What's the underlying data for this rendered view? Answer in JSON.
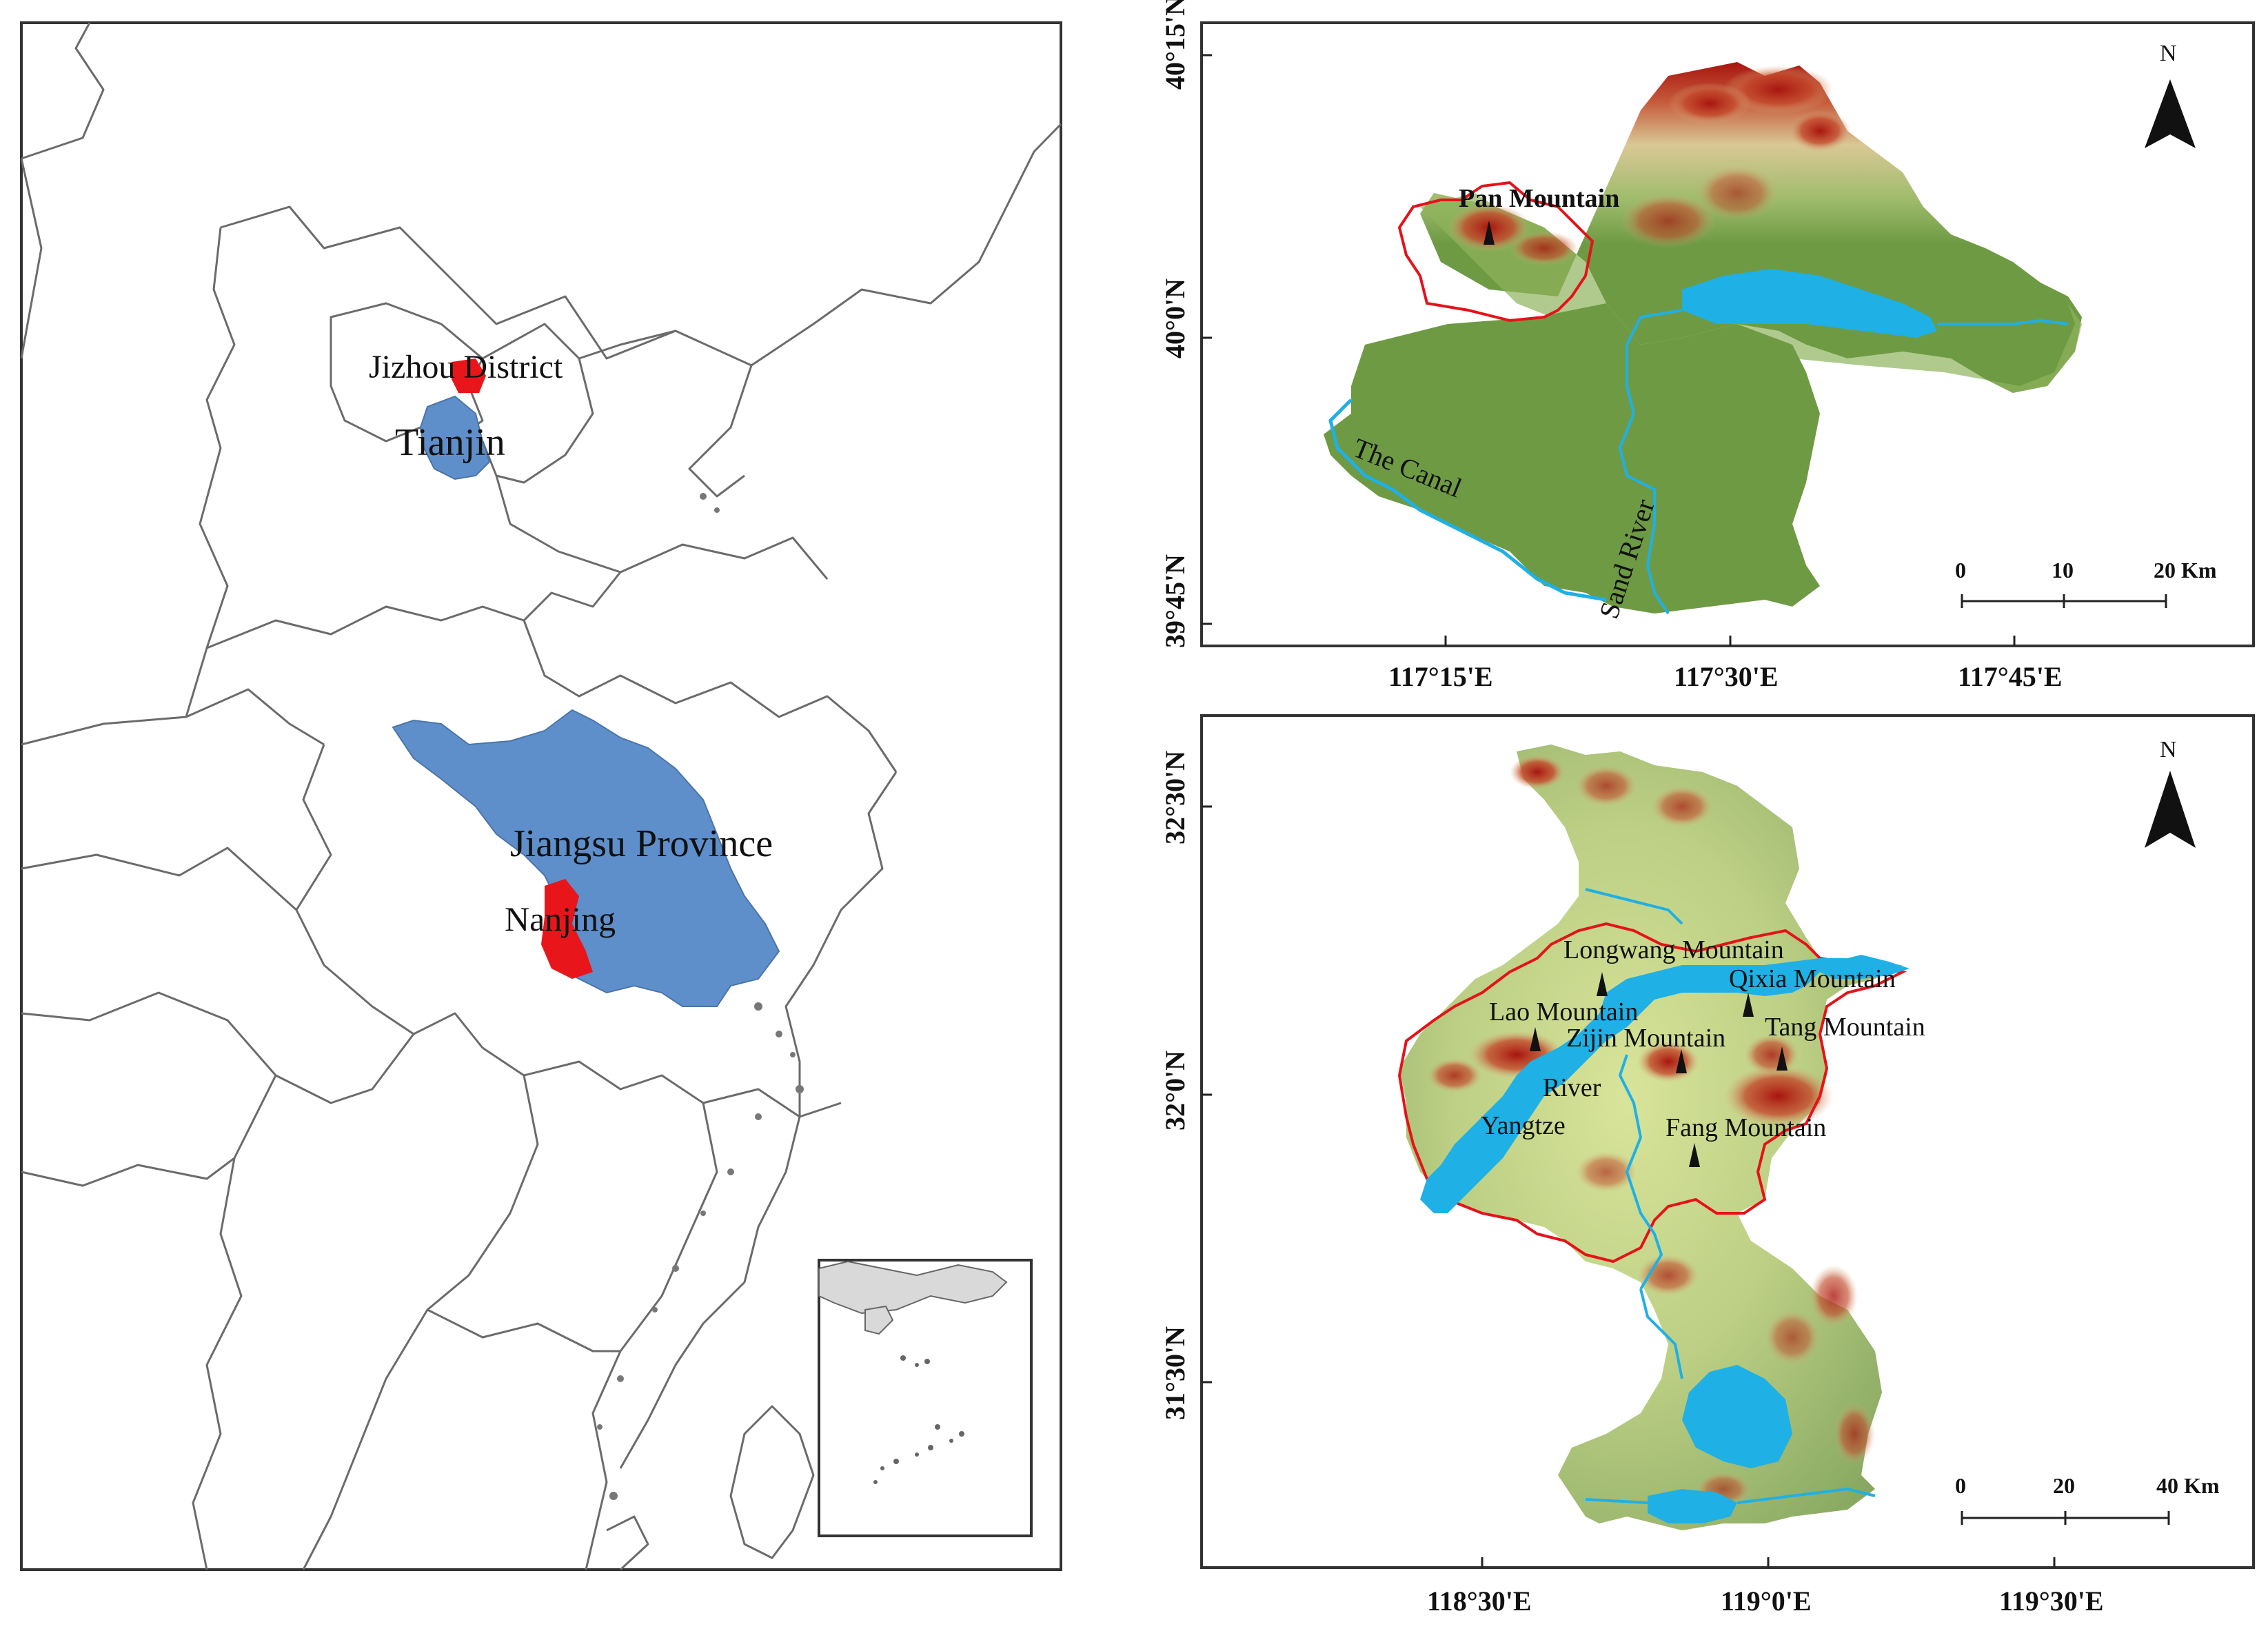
{
  "overview_map": {
    "labels": {
      "jizhou": "Jizhou District",
      "tianjin": "Tianjin",
      "jiangsu": "Jiangsu Province",
      "nanjing": "Nanjing"
    },
    "colors": {
      "highlight": "#e8161b",
      "province": "#5f8fca",
      "boundary": "#6b6b6b"
    }
  },
  "tianjin_map": {
    "north_label": "N",
    "lat_ticks": [
      "40°15'N",
      "40°0'N",
      "39°45'N"
    ],
    "lon_ticks": [
      "117°15'E",
      "117°30'E",
      "117°45'E"
    ],
    "places": {
      "pan_mountain": "Pan Mountain",
      "the_canal": "The Canal",
      "sand_river": "Sand River"
    },
    "scale": {
      "ticks": [
        "0",
        "10",
        "20 Km"
      ]
    }
  },
  "nanjing_map": {
    "north_label": "N",
    "lat_ticks": [
      "32°30'N",
      "32°0'N",
      "31°30'N"
    ],
    "lon_ticks": [
      "118°30'E",
      "119°0'E",
      "119°30'E"
    ],
    "places": {
      "longwang": "Longwang Mountain",
      "qixia": "Qixia Mountain",
      "lao": "Lao Mountain",
      "zijin": "Zijin Mountain",
      "tang": "Tang Mountain",
      "river": "River",
      "yangtze": "Yangtze",
      "fang": "Fang Mountain"
    },
    "scale": {
      "ticks": [
        "0",
        "20",
        "40 Km"
      ]
    }
  },
  "colors": {
    "elev_low": "#6e9a44",
    "elev_mid": "#c9d891",
    "elev_high": "#a8150f",
    "water": "#1fb0e6",
    "study_outline": "#e5121a"
  }
}
